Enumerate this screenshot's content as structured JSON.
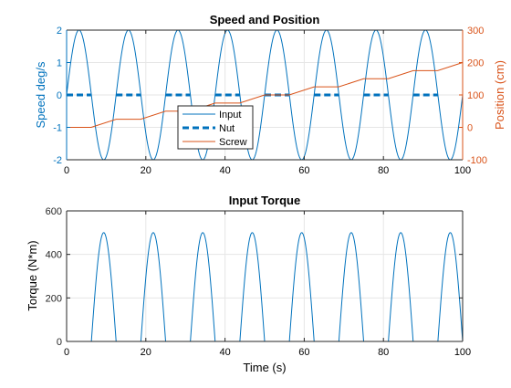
{
  "chart_data": [
    {
      "type": "line",
      "title": "Speed and Position",
      "xlabel": "",
      "ylabel": "Speed deg/s",
      "ylabel_right": "Position (cm)",
      "xlim": [
        0,
        100
      ],
      "ylim": [
        -2,
        2
      ],
      "ylim_right": [
        -100,
        300
      ],
      "x_ticks": [
        "0",
        "20",
        "40",
        "60",
        "80",
        "100"
      ],
      "y_ticks": [
        "-2",
        "-1",
        "0",
        "1",
        "2"
      ],
      "y_ticks_right": [
        "-100",
        "0",
        "100",
        "200",
        "300"
      ],
      "grid": true,
      "legend_position": "lower-center",
      "series": [
        {
          "name": "Input",
          "axis": "left",
          "style": "solid",
          "color": "#0072BD",
          "signal": "sine",
          "amplitude": 2,
          "period": 12.5,
          "phase_deg": 0
        },
        {
          "name": "Nut",
          "axis": "left",
          "style": "dashed-thick",
          "color": "#0072BD",
          "signal": "pulse",
          "on_value": 0,
          "period": 12.5,
          "on_intervals": [
            [
              0,
              6.2
            ],
            [
              12.5,
              18.7
            ],
            [
              25,
              31.2
            ],
            [
              37.5,
              43.7
            ],
            [
              50,
              56.2
            ],
            [
              62.5,
              68.7
            ],
            [
              75,
              81.2
            ],
            [
              87.5,
              93.7
            ]
          ]
        },
        {
          "name": "Screw",
          "axis": "right",
          "style": "solid",
          "color": "#D95319",
          "signal": "staircase",
          "points": [
            [
              0,
              0
            ],
            [
              6.2,
              0
            ],
            [
              12.5,
              25
            ],
            [
              18.7,
              25
            ],
            [
              25,
              50
            ],
            [
              31.2,
              50
            ],
            [
              37.5,
              75
            ],
            [
              43.7,
              75
            ],
            [
              50,
              100
            ],
            [
              56.2,
              100
            ],
            [
              62.5,
              125
            ],
            [
              68.7,
              125
            ],
            [
              75,
              150
            ],
            [
              81.2,
              150
            ],
            [
              87.5,
              175
            ],
            [
              93.7,
              175
            ],
            [
              100,
              200
            ]
          ]
        }
      ]
    },
    {
      "type": "line",
      "title": "Input Torque",
      "xlabel": "Time (s)",
      "ylabel": "Torque (N*m)",
      "xlim": [
        0,
        100
      ],
      "ylim": [
        0,
        600
      ],
      "x_ticks": [
        "0",
        "20",
        "40",
        "60",
        "80",
        "100"
      ],
      "y_ticks": [
        "0",
        "200",
        "400",
        "600"
      ],
      "grid": true,
      "series": [
        {
          "name": "",
          "style": "solid",
          "color": "#0072BD",
          "signal": "half-sine-pulses",
          "peak": 500,
          "period": 12.5,
          "pulse_start_offset": 6.25,
          "pulse_width": 6.25
        }
      ]
    }
  ],
  "colors": {
    "primary_blue": "#0072BD",
    "orange": "#D95319",
    "grid": "#e6e6e6",
    "axis": "#262626"
  }
}
